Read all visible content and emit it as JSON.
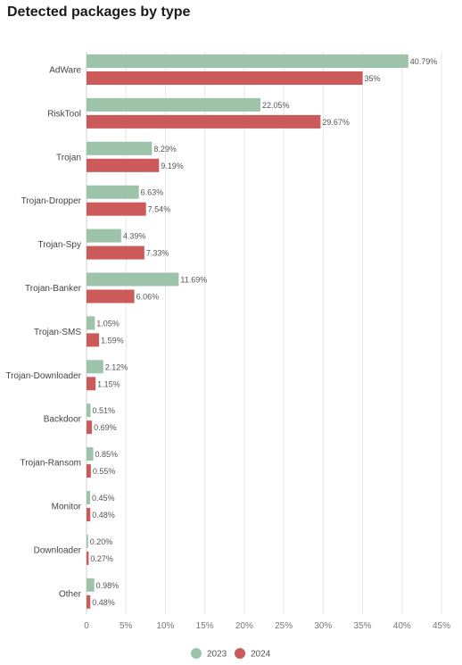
{
  "chart_data": {
    "type": "bar",
    "orientation": "horizontal",
    "title": "Detected packages by type",
    "categories": [
      "AdWare",
      "RiskTool",
      "Trojan",
      "Trojan-Dropper",
      "Trojan-Spy",
      "Trojan-Banker",
      "Trojan-SMS",
      "Trojan-Downloader",
      "Backdoor",
      "Trojan-Ransom",
      "Monitor",
      "Downloader",
      "Other"
    ],
    "series": [
      {
        "name": "2023",
        "color": "#9dc3a8",
        "values": [
          40.79,
          22.05,
          8.29,
          6.63,
          4.39,
          11.69,
          1.05,
          2.12,
          0.51,
          0.85,
          0.45,
          0.2,
          0.98
        ],
        "labels": [
          "40.79%",
          "22.05%",
          "8.29%",
          "6.63%",
          "4.39%",
          "11.69%",
          "1.05%",
          "2.12%",
          "0.51%",
          "0.85%",
          "0.45%",
          "0.20%",
          "0.98%"
        ]
      },
      {
        "name": "2024",
        "color": "#cc5a5a",
        "values": [
          35,
          29.67,
          9.19,
          7.54,
          7.33,
          6.06,
          1.59,
          1.15,
          0.69,
          0.55,
          0.48,
          0.27,
          0.48
        ],
        "labels": [
          "35%",
          "29.67%",
          "9.19%",
          "7.54%",
          "7.33%",
          "6.06%",
          "1.59%",
          "1.15%",
          "0.69%",
          "0.55%",
          "0.48%",
          "0.27%",
          "0.48%"
        ]
      }
    ],
    "xlim": [
      0,
      45
    ],
    "xticks": [
      "0",
      "5%",
      "10%",
      "15%",
      "20%",
      "25%",
      "30%",
      "35%",
      "40%",
      "45%"
    ],
    "grid": true,
    "legend": "bottom-center"
  }
}
